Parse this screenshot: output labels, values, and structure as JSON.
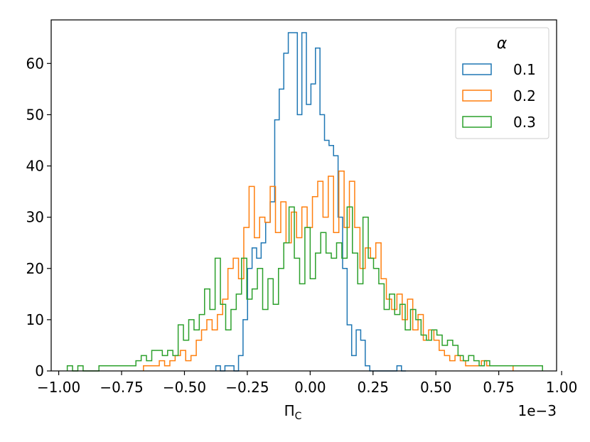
{
  "chart_data": {
    "type": "histogram",
    "xlabel": "Π",
    "xlabel_sub": "C",
    "ylabel": "",
    "x_offset_label": "1e−3",
    "xlim": [
      -1.03,
      0.98
    ],
    "ylim": [
      0,
      68.5
    ],
    "xticks": [
      -1.0,
      -0.75,
      -0.5,
      -0.25,
      0.0,
      0.25,
      0.5,
      0.75,
      1.0
    ],
    "xtick_labels": [
      "−1.00",
      "−0.75",
      "−0.50",
      "−0.25",
      "0.00",
      "0.25",
      "0.50",
      "0.75",
      "1.00"
    ],
    "yticks": [
      0,
      10,
      20,
      30,
      40,
      50,
      60
    ],
    "ytick_labels": [
      "0",
      "10",
      "20",
      "30",
      "40",
      "50",
      "60"
    ],
    "legend": {
      "title": "α",
      "position": "upper right"
    },
    "grid": false,
    "series": [
      {
        "name": "0.1",
        "color": "#1f77b4",
        "edges": [
          -0.375,
          -0.357,
          -0.339,
          -0.321,
          -0.303,
          -0.285,
          -0.267,
          -0.249,
          -0.231,
          -0.213,
          -0.195,
          -0.177,
          -0.159,
          -0.141,
          -0.123,
          -0.105,
          -0.087,
          -0.069,
          -0.051,
          -0.033,
          -0.015,
          0.003,
          0.021,
          0.039,
          0.057,
          0.075,
          0.093,
          0.111,
          0.129,
          0.147,
          0.165,
          0.183,
          0.201,
          0.219,
          0.237,
          0.255,
          0.273,
          0.291,
          0.309,
          0.327,
          0.345,
          0.363,
          0.381
        ],
        "counts": [
          1,
          0,
          1,
          1,
          0,
          3,
          10,
          20,
          24,
          22,
          25,
          29,
          33,
          49,
          55,
          62,
          66,
          66,
          50,
          66,
          52,
          56,
          63,
          50,
          45,
          44,
          42,
          30,
          20,
          9,
          3,
          8,
          6,
          1,
          0,
          0,
          0,
          0,
          0,
          0,
          1,
          0
        ]
      },
      {
        "name": "0.2",
        "color": "#ff7f0e",
        "edges": [
          -0.663,
          -0.642,
          -0.621,
          -0.6,
          -0.579,
          -0.558,
          -0.537,
          -0.516,
          -0.495,
          -0.474,
          -0.453,
          -0.432,
          -0.411,
          -0.39,
          -0.369,
          -0.348,
          -0.327,
          -0.306,
          -0.285,
          -0.264,
          -0.243,
          -0.222,
          -0.201,
          -0.18,
          -0.159,
          -0.138,
          -0.117,
          -0.096,
          -0.075,
          -0.054,
          -0.033,
          -0.012,
          0.009,
          0.03,
          0.051,
          0.072,
          0.093,
          0.114,
          0.135,
          0.156,
          0.177,
          0.198,
          0.219,
          0.24,
          0.261,
          0.282,
          0.303,
          0.324,
          0.345,
          0.366,
          0.387,
          0.408,
          0.429,
          0.45,
          0.471,
          0.492,
          0.513,
          0.534,
          0.555,
          0.576,
          0.597,
          0.618,
          0.639,
          0.66,
          0.681,
          0.702,
          0.723,
          0.744,
          0.765,
          0.786,
          0.807
        ],
        "counts": [
          1,
          1,
          1,
          2,
          1,
          2,
          3,
          4,
          2,
          3,
          6,
          8,
          10,
          8,
          11,
          14,
          20,
          22,
          18,
          28,
          36,
          26,
          30,
          29,
          36,
          27,
          33,
          25,
          31,
          26,
          32,
          28,
          34,
          37,
          30,
          38,
          27,
          39,
          28,
          37,
          28,
          20,
          24,
          22,
          25,
          18,
          14,
          12,
          15,
          10,
          14,
          8,
          11,
          6,
          8,
          6,
          4,
          3,
          2,
          3,
          2,
          1,
          1,
          1,
          2,
          1,
          1,
          1,
          1,
          1
        ]
      },
      {
        "name": "0.3",
        "color": "#2ca02c",
        "edges": [
          -0.966,
          -0.945,
          -0.924,
          -0.903,
          -0.882,
          -0.861,
          -0.84,
          -0.819,
          -0.798,
          -0.777,
          -0.756,
          -0.735,
          -0.714,
          -0.693,
          -0.672,
          -0.651,
          -0.63,
          -0.609,
          -0.588,
          -0.567,
          -0.546,
          -0.525,
          -0.504,
          -0.483,
          -0.462,
          -0.441,
          -0.42,
          -0.399,
          -0.378,
          -0.357,
          -0.336,
          -0.315,
          -0.294,
          -0.273,
          -0.252,
          -0.231,
          -0.21,
          -0.189,
          -0.168,
          -0.147,
          -0.126,
          -0.105,
          -0.084,
          -0.063,
          -0.042,
          -0.021,
          0.0,
          0.021,
          0.042,
          0.063,
          0.084,
          0.105,
          0.126,
          0.147,
          0.168,
          0.189,
          0.21,
          0.231,
          0.252,
          0.273,
          0.294,
          0.315,
          0.336,
          0.357,
          0.378,
          0.399,
          0.42,
          0.441,
          0.462,
          0.483,
          0.504,
          0.525,
          0.546,
          0.567,
          0.588,
          0.609,
          0.63,
          0.651,
          0.672,
          0.693,
          0.714,
          0.735,
          0.756,
          0.777,
          0.798,
          0.819,
          0.84,
          0.861,
          0.882,
          0.903,
          0.924
        ],
        "counts": [
          1,
          0,
          1,
          0,
          0,
          0,
          1,
          1,
          1,
          1,
          1,
          1,
          1,
          2,
          3,
          2,
          4,
          4,
          3,
          4,
          3,
          9,
          6,
          10,
          8,
          11,
          16,
          12,
          22,
          13,
          8,
          12,
          15,
          22,
          14,
          16,
          20,
          12,
          18,
          13,
          20,
          25,
          32,
          22,
          17,
          28,
          18,
          23,
          27,
          23,
          22,
          25,
          22,
          32,
          23,
          17,
          30,
          22,
          20,
          17,
          12,
          15,
          11,
          13,
          8,
          12,
          10,
          7,
          6,
          8,
          7,
          5,
          6,
          5,
          3,
          2,
          3,
          2,
          1,
          2,
          1,
          1,
          1,
          1,
          1,
          1,
          1,
          1,
          1,
          1
        ]
      }
    ]
  }
}
